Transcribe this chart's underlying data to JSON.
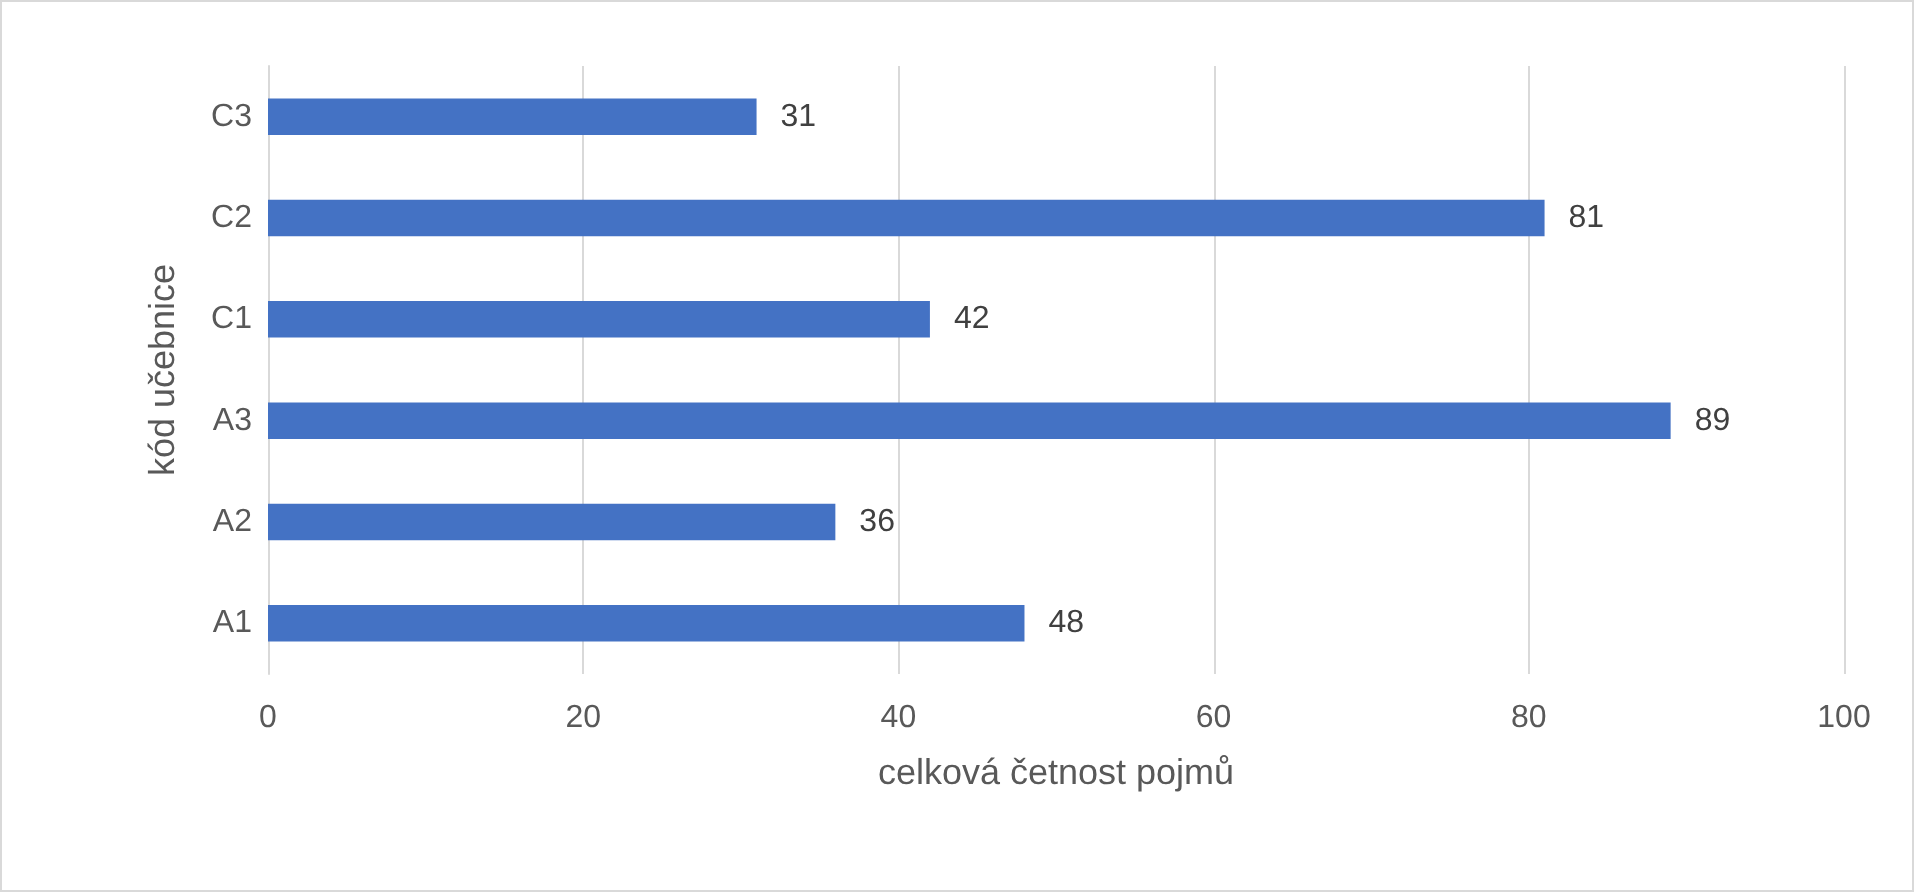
{
  "chart_data": {
    "type": "bar",
    "orientation": "horizontal",
    "xlabel": "celková četnost pojmů",
    "ylabel": "kód učebnice",
    "categories": [
      "C3",
      "C2",
      "C1",
      "A3",
      "A2",
      "A1"
    ],
    "values": [
      31,
      81,
      42,
      89,
      36,
      48
    ],
    "color": "#4472c4",
    "data_labels": true,
    "xlim": [
      0,
      100
    ],
    "xticks": [
      0,
      20,
      40,
      60,
      80,
      100
    ],
    "grid": "x"
  }
}
